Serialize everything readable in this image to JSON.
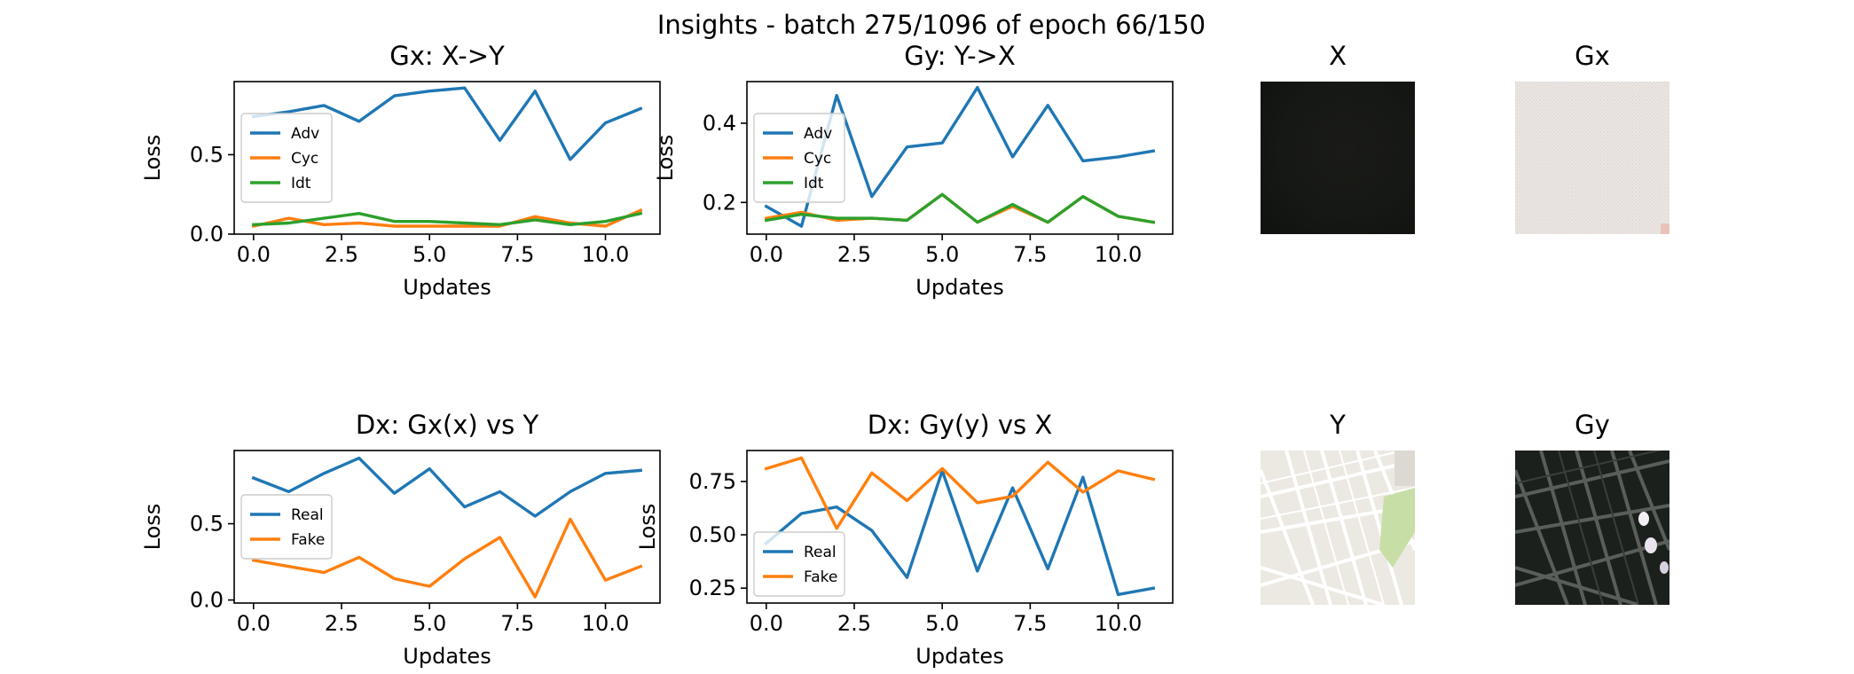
{
  "figure": {
    "suptitle": "Insights - batch 275/1096 of epoch 66/150"
  },
  "colors": {
    "blue": "#1f77b4",
    "orange": "#ff7f0e",
    "green": "#2ca02c"
  },
  "chart_data": [
    {
      "type": "line",
      "title": "Gx: X->Y",
      "xlabel": "Updates",
      "ylabel": "Loss",
      "xlim": [
        -0.55,
        11.55
      ],
      "ylim": [
        0.0,
        0.96
      ],
      "xticks": [
        0,
        2.5,
        5,
        7.5,
        10
      ],
      "xtick_labels": [
        "0.0",
        "2.5",
        "5.0",
        "7.5",
        "10.0"
      ],
      "yticks": [
        0,
        0.5
      ],
      "ytick_labels": [
        "0.0",
        "0.5"
      ],
      "legend": "center-left",
      "x": [
        0,
        1,
        2,
        3,
        4,
        5,
        6,
        7,
        8,
        9,
        10,
        11
      ],
      "series": [
        {
          "name": "Adv",
          "color": "#1f77b4",
          "values": [
            0.74,
            0.77,
            0.81,
            0.71,
            0.87,
            0.9,
            0.92,
            0.59,
            0.9,
            0.47,
            0.7,
            0.79
          ]
        },
        {
          "name": "Cyc",
          "color": "#ff7f0e",
          "values": [
            0.05,
            0.1,
            0.06,
            0.07,
            0.05,
            0.05,
            0.05,
            0.05,
            0.11,
            0.07,
            0.05,
            0.15
          ]
        },
        {
          "name": "Idt",
          "color": "#2ca02c",
          "values": [
            0.06,
            0.07,
            0.1,
            0.13,
            0.08,
            0.08,
            0.07,
            0.06,
            0.09,
            0.06,
            0.08,
            0.13
          ]
        }
      ]
    },
    {
      "type": "line",
      "title": "Gy: Y->X",
      "xlabel": "Updates",
      "ylabel": "Loss",
      "xlim": [
        -0.55,
        11.55
      ],
      "ylim": [
        0.12,
        0.505
      ],
      "xticks": [
        0,
        2.5,
        5,
        7.5,
        10
      ],
      "xtick_labels": [
        "0.0",
        "2.5",
        "5.0",
        "7.5",
        "10.0"
      ],
      "yticks": [
        0.2,
        0.4
      ],
      "ytick_labels": [
        "0.2",
        "0.4"
      ],
      "legend": "center-left",
      "x": [
        0,
        1,
        2,
        3,
        4,
        5,
        6,
        7,
        8,
        9,
        10,
        11
      ],
      "series": [
        {
          "name": "Adv",
          "color": "#1f77b4",
          "values": [
            0.19,
            0.14,
            0.47,
            0.215,
            0.34,
            0.35,
            0.49,
            0.315,
            0.445,
            0.305,
            0.315,
            0.33
          ]
        },
        {
          "name": "Cyc",
          "color": "#ff7f0e",
          "values": [
            0.16,
            0.175,
            0.155,
            0.16,
            0.155,
            0.22,
            0.15,
            0.19,
            0.15,
            0.215,
            0.165,
            0.15
          ]
        },
        {
          "name": "Idt",
          "color": "#2ca02c",
          "values": [
            0.155,
            0.17,
            0.16,
            0.16,
            0.155,
            0.22,
            0.15,
            0.195,
            0.15,
            0.215,
            0.165,
            0.15
          ]
        }
      ]
    },
    {
      "type": "line",
      "title": "Dx: Gx(x) vs Y",
      "xlabel": "Updates",
      "ylabel": "Loss",
      "xlim": [
        -0.55,
        11.55
      ],
      "ylim": [
        -0.02,
        0.98
      ],
      "xticks": [
        0,
        2.5,
        5,
        7.5,
        10
      ],
      "xtick_labels": [
        "0.0",
        "2.5",
        "5.0",
        "7.5",
        "10.0"
      ],
      "yticks": [
        0,
        0.5
      ],
      "ytick_labels": [
        "0.0",
        "0.5"
      ],
      "legend": "center-left",
      "x": [
        0,
        1,
        2,
        3,
        4,
        5,
        6,
        7,
        8,
        9,
        10,
        11
      ],
      "series": [
        {
          "name": "Real",
          "color": "#1f77b4",
          "values": [
            0.8,
            0.71,
            0.83,
            0.93,
            0.7,
            0.86,
            0.61,
            0.71,
            0.55,
            0.71,
            0.83,
            0.85
          ]
        },
        {
          "name": "Fake",
          "color": "#ff7f0e",
          "values": [
            0.26,
            0.22,
            0.18,
            0.28,
            0.14,
            0.09,
            0.27,
            0.41,
            0.02,
            0.53,
            0.13,
            0.22
          ]
        }
      ]
    },
    {
      "type": "line",
      "title": "Dx: Gy(y) vs X",
      "xlabel": "Updates",
      "ylabel": "Loss",
      "xlim": [
        -0.55,
        11.55
      ],
      "ylim": [
        0.18,
        0.895
      ],
      "xticks": [
        0,
        2.5,
        5,
        7.5,
        10
      ],
      "xtick_labels": [
        "0.0",
        "2.5",
        "5.0",
        "7.5",
        "10.0"
      ],
      "yticks": [
        0.25,
        0.5,
        0.75
      ],
      "ytick_labels": [
        "0.25",
        "0.50",
        "0.75"
      ],
      "legend": "lower-left",
      "x": [
        0,
        1,
        2,
        3,
        4,
        5,
        6,
        7,
        8,
        9,
        10,
        11
      ],
      "series": [
        {
          "name": "Real",
          "color": "#1f77b4",
          "values": [
            0.46,
            0.6,
            0.63,
            0.52,
            0.3,
            0.8,
            0.33,
            0.72,
            0.34,
            0.77,
            0.22,
            0.25
          ]
        },
        {
          "name": "Fake",
          "color": "#ff7f0e",
          "values": [
            0.81,
            0.86,
            0.53,
            0.79,
            0.66,
            0.81,
            0.65,
            0.68,
            0.84,
            0.7,
            0.8,
            0.76
          ]
        }
      ]
    }
  ],
  "images": [
    {
      "title": "X"
    },
    {
      "title": "Gx"
    },
    {
      "title": "Y"
    },
    {
      "title": "Gy"
    }
  ]
}
